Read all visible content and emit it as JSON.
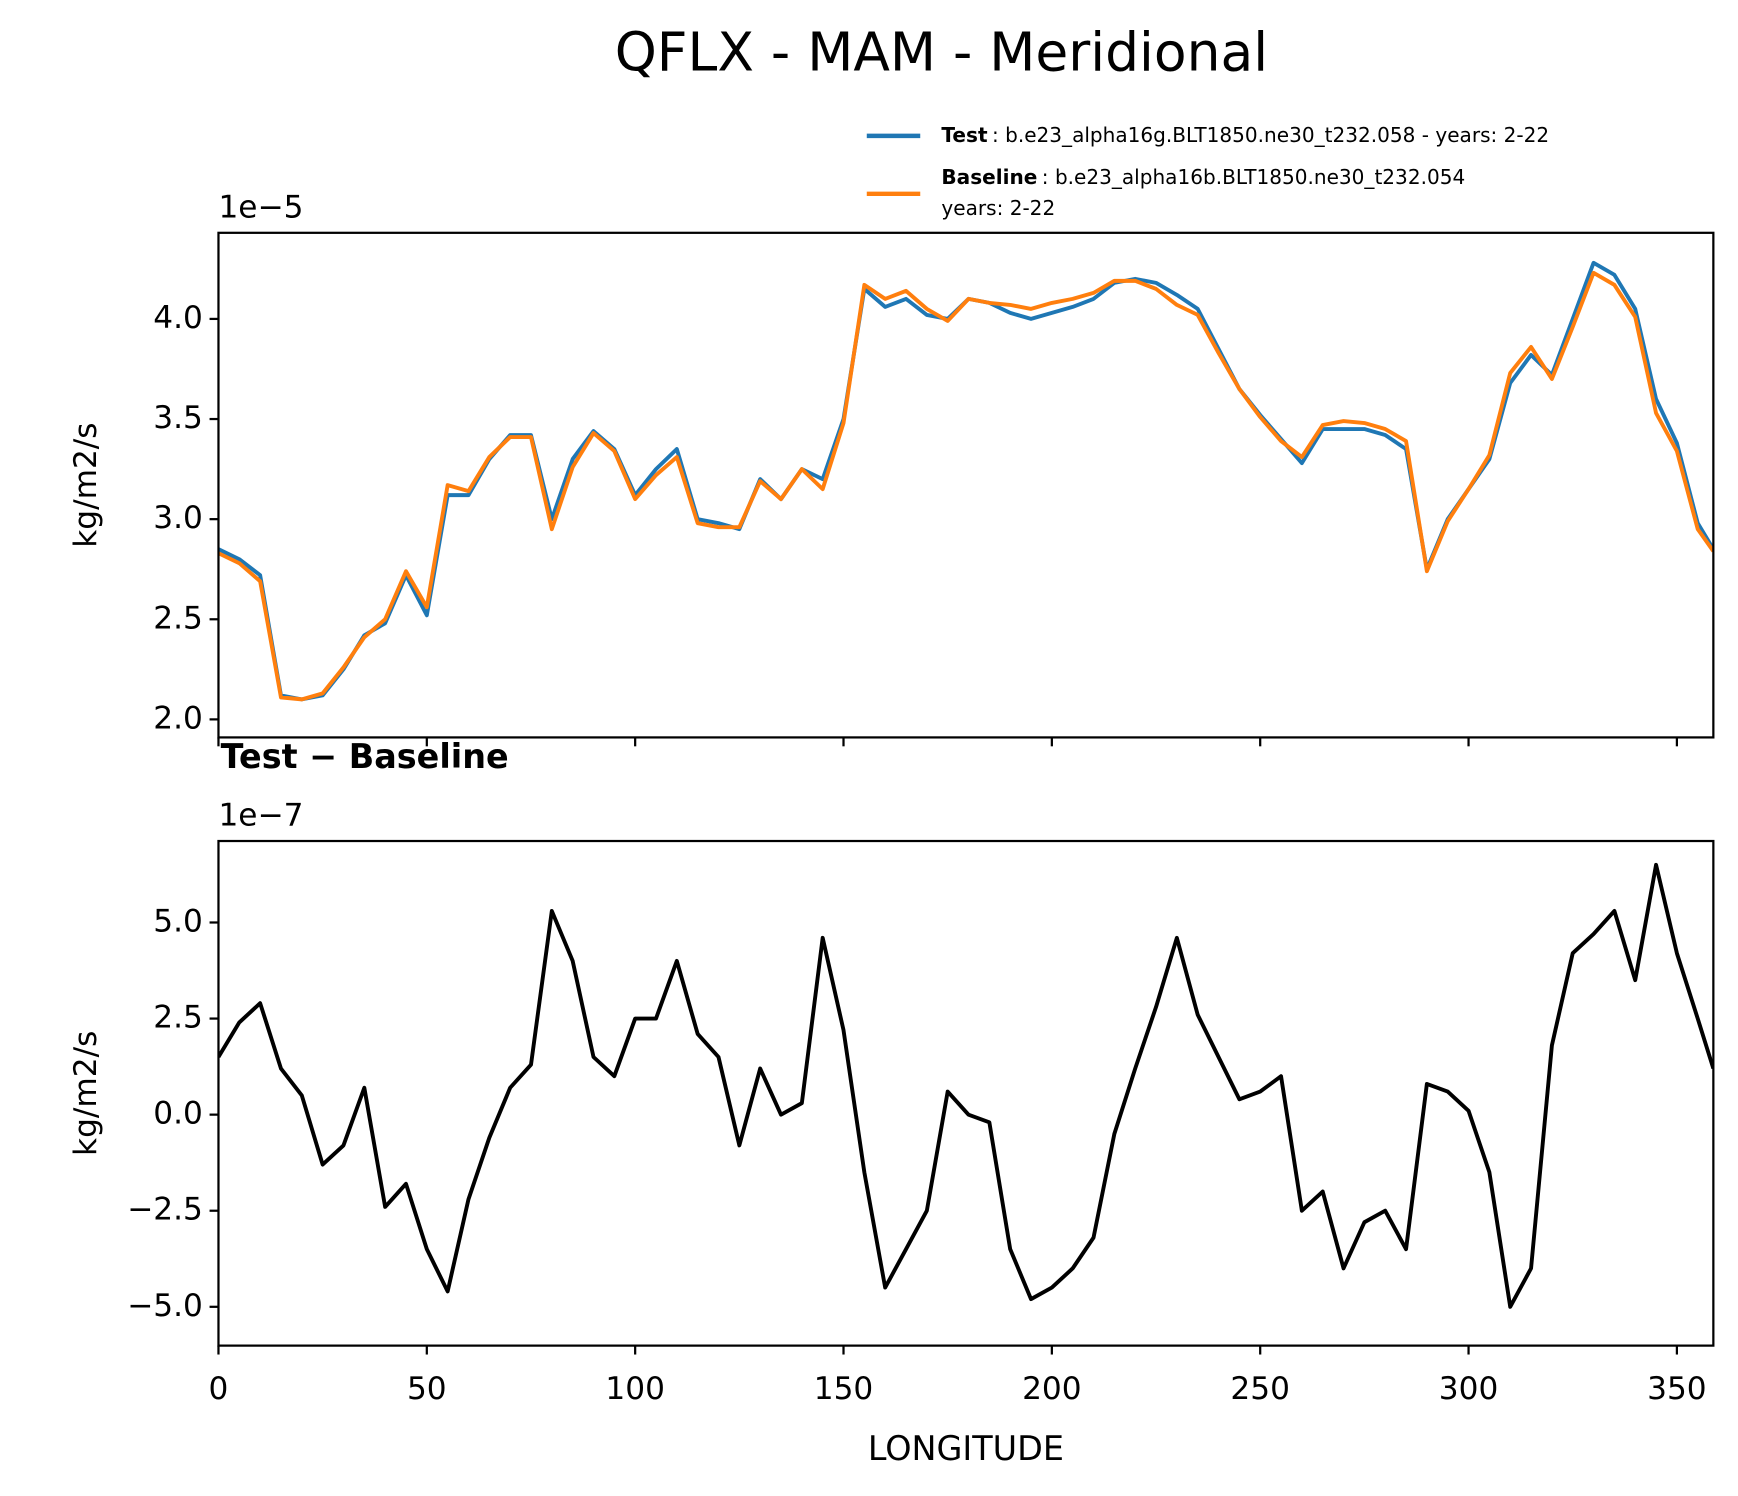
{
  "title": "QFLX - MAM - Meridional",
  "chart_data": [
    {
      "type": "line",
      "x": [
        0,
        5,
        10,
        15,
        20,
        25,
        30,
        35,
        40,
        45,
        50,
        55,
        60,
        65,
        70,
        75,
        80,
        85,
        90,
        95,
        100,
        105,
        110,
        115,
        120,
        125,
        130,
        135,
        140,
        145,
        150,
        155,
        160,
        165,
        170,
        175,
        180,
        185,
        190,
        195,
        200,
        205,
        210,
        215,
        220,
        225,
        230,
        235,
        240,
        245,
        250,
        255,
        260,
        265,
        270,
        275,
        280,
        285,
        290,
        295,
        300,
        305,
        310,
        315,
        320,
        325,
        330,
        335,
        340,
        345,
        350,
        355,
        358.75
      ],
      "series": [
        {
          "name": "Test",
          "description": ": b.e23_alpha16g.BLT1850.ne30_t232.058 - years: 2-22",
          "color": "#1f77b4",
          "values": [
            2.85,
            2.8,
            2.72,
            2.12,
            2.1,
            2.12,
            2.25,
            2.42,
            2.48,
            2.72,
            2.52,
            3.12,
            3.12,
            3.3,
            3.42,
            3.42,
            3.0,
            3.3,
            3.44,
            3.35,
            3.12,
            3.25,
            3.35,
            3.0,
            2.98,
            2.95,
            3.2,
            3.1,
            3.25,
            3.2,
            3.5,
            4.15,
            4.06,
            4.1,
            4.02,
            4.0,
            4.1,
            4.08,
            4.03,
            4.0,
            4.03,
            4.06,
            4.1,
            4.18,
            4.2,
            4.18,
            4.12,
            4.05,
            3.85,
            3.65,
            3.52,
            3.4,
            3.28,
            3.45,
            3.45,
            3.45,
            3.42,
            3.35,
            2.75,
            3.0,
            3.15,
            3.3,
            3.68,
            3.82,
            3.72,
            4.0,
            4.28,
            4.22,
            4.05,
            3.6,
            3.38,
            2.98,
            2.85
          ]
        },
        {
          "name": "Baseline",
          "description_lines": [
            ": b.e23_alpha16b.BLT1850.ne30_t232.054",
            "years: 2-22"
          ],
          "color": "#ff7f0e",
          "values": [
            2.83,
            2.78,
            2.69,
            2.11,
            2.1,
            2.13,
            2.26,
            2.41,
            2.5,
            2.74,
            2.56,
            3.17,
            3.14,
            3.31,
            3.41,
            3.41,
            2.95,
            3.26,
            3.43,
            3.34,
            3.1,
            3.22,
            3.31,
            2.98,
            2.96,
            2.96,
            3.19,
            3.1,
            3.25,
            3.15,
            3.48,
            4.17,
            4.1,
            4.14,
            4.05,
            3.99,
            4.1,
            4.08,
            4.07,
            4.05,
            4.08,
            4.1,
            4.13,
            4.19,
            4.19,
            4.15,
            4.07,
            4.02,
            3.83,
            3.65,
            3.51,
            3.39,
            3.31,
            3.47,
            3.49,
            3.48,
            3.45,
            3.39,
            2.74,
            2.99,
            3.15,
            3.32,
            3.73,
            3.86,
            3.7,
            3.96,
            4.23,
            4.17,
            4.01,
            3.53,
            3.34,
            2.95,
            2.84
          ]
        }
      ],
      "ylabel": "kg/m2/s",
      "offset_text": "1e−5",
      "xlim": [
        0,
        358.75
      ],
      "xticks": [
        0,
        50,
        100,
        150,
        200,
        250,
        300,
        350
      ],
      "ylim": [
        1.91,
        4.43
      ],
      "yticks": [
        {
          "value": 2,
          "label": "2.0"
        },
        {
          "value": 2.5,
          "label": "2.5"
        },
        {
          "value": 3,
          "label": "3.0"
        },
        {
          "value": 3.5,
          "label": "3.5"
        },
        {
          "value": 4,
          "label": "4.0"
        }
      ]
    },
    {
      "type": "line",
      "title": "Test − Baseline",
      "x": [
        0,
        5,
        10,
        15,
        20,
        25,
        30,
        35,
        40,
        45,
        50,
        55,
        60,
        65,
        70,
        75,
        80,
        85,
        90,
        95,
        100,
        105,
        110,
        115,
        120,
        125,
        130,
        135,
        140,
        145,
        150,
        155,
        160,
        165,
        170,
        175,
        180,
        185,
        190,
        195,
        200,
        205,
        210,
        215,
        220,
        225,
        230,
        235,
        240,
        245,
        250,
        255,
        260,
        265,
        270,
        275,
        280,
        285,
        290,
        295,
        300,
        305,
        310,
        315,
        320,
        325,
        330,
        335,
        340,
        345,
        350,
        355,
        358.75
      ],
      "series": [
        {
          "color": "#000000",
          "values": [
            1.5,
            2.4,
            2.9,
            1.2,
            0.5,
            -1.3,
            -0.8,
            0.7,
            -2.4,
            -1.8,
            -3.5,
            -4.6,
            -2.2,
            -0.6,
            0.7,
            1.3,
            5.3,
            4.0,
            1.5,
            1.0,
            2.5,
            2.5,
            4.0,
            2.1,
            1.5,
            -0.8,
            1.2,
            0.0,
            0.3,
            4.6,
            2.2,
            -1.5,
            -4.5,
            -3.5,
            -2.5,
            0.6,
            0.0,
            -0.2,
            -3.5,
            -4.8,
            -4.5,
            -4.0,
            -3.2,
            -0.5,
            1.2,
            2.8,
            4.6,
            2.6,
            1.5,
            0.4,
            0.6,
            1.0,
            -2.5,
            -2.0,
            -4.0,
            -2.8,
            -2.5,
            -3.5,
            0.8,
            0.6,
            0.1,
            -1.5,
            -5.0,
            -4.0,
            1.8,
            4.2,
            4.7,
            5.3,
            3.5,
            6.5,
            4.2,
            2.5,
            1.2
          ]
        }
      ],
      "xlabel": "LONGITUDE",
      "ylabel": "kg/m2/s",
      "offset_text": "1e−7",
      "xlim": [
        0,
        358.75
      ],
      "xticks": [
        0,
        50,
        100,
        150,
        200,
        250,
        300,
        350
      ],
      "ylim": [
        -6.01,
        7.12
      ],
      "yticks": [
        {
          "value": -5,
          "label": "−5.0"
        },
        {
          "value": -2.5,
          "label": "−2.5"
        },
        {
          "value": 0,
          "label": "0.0"
        },
        {
          "value": 2.5,
          "label": "2.5"
        },
        {
          "value": 5,
          "label": "5.0"
        }
      ]
    }
  ]
}
